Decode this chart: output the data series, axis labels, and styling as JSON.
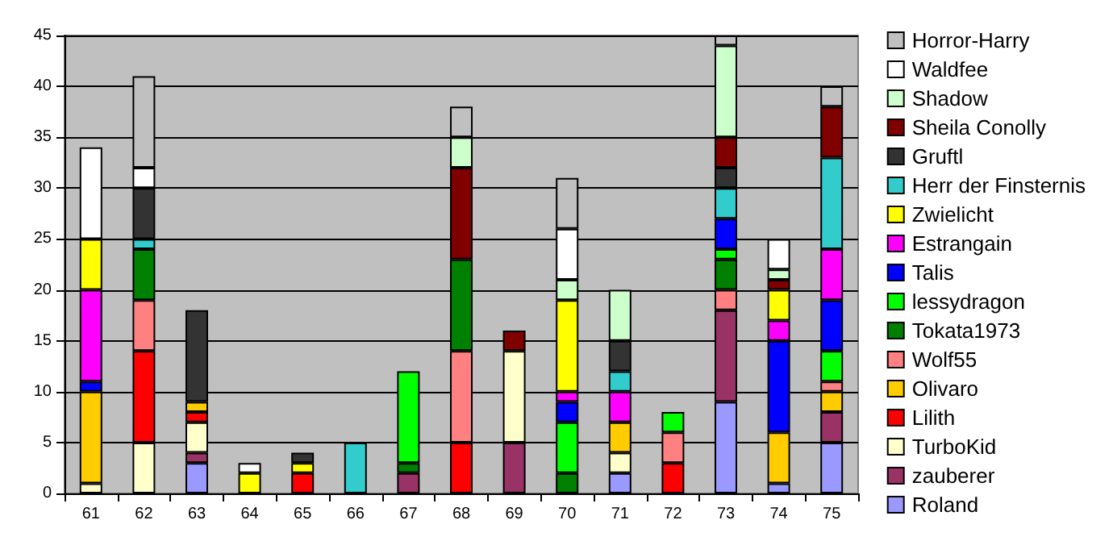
{
  "chart_data": {
    "type": "bar",
    "stacked": true,
    "categories": [
      "61",
      "62",
      "63",
      "64",
      "65",
      "66",
      "67",
      "68",
      "69",
      "70",
      "71",
      "72",
      "73",
      "74",
      "75"
    ],
    "ylim": [
      0,
      45
    ],
    "yticks": [
      0,
      5,
      10,
      15,
      20,
      25,
      30,
      35,
      40,
      45
    ],
    "grid": "y",
    "legend": "right",
    "series": [
      {
        "name": "Roland",
        "color": "#9999ff",
        "values": [
          null,
          null,
          3,
          null,
          null,
          null,
          null,
          null,
          null,
          null,
          2,
          null,
          9,
          1,
          5
        ]
      },
      {
        "name": "zauberer",
        "color": "#993366",
        "values": [
          null,
          null,
          1,
          null,
          null,
          null,
          2,
          null,
          5,
          null,
          null,
          null,
          9,
          null,
          3
        ]
      },
      {
        "name": "TurboKid",
        "color": "#ffffcc",
        "values": [
          1,
          5,
          3,
          null,
          null,
          null,
          null,
          null,
          9,
          null,
          2,
          null,
          null,
          null,
          null
        ]
      },
      {
        "name": "Lilith",
        "color": "#ff0000",
        "values": [
          null,
          9,
          1,
          null,
          2,
          null,
          null,
          5,
          null,
          null,
          null,
          3,
          null,
          null,
          null
        ]
      },
      {
        "name": "Olivaro",
        "color": "#ffcc00",
        "values": [
          9,
          null,
          1,
          null,
          null,
          null,
          null,
          null,
          null,
          null,
          3,
          null,
          null,
          5,
          2
        ]
      },
      {
        "name": "Wolf55",
        "color": "#ff8080",
        "values": [
          null,
          5,
          null,
          null,
          null,
          null,
          null,
          9,
          null,
          null,
          null,
          3,
          2,
          null,
          1
        ]
      },
      {
        "name": "Tokata1973",
        "color": "#008000",
        "values": [
          null,
          5,
          null,
          null,
          null,
          null,
          1,
          9,
          null,
          2,
          null,
          null,
          3,
          null,
          null
        ]
      },
      {
        "name": "lessydragon",
        "color": "#00ff00",
        "values": [
          null,
          null,
          null,
          null,
          null,
          null,
          9,
          null,
          null,
          5,
          null,
          2,
          1,
          null,
          3
        ]
      },
      {
        "name": "Talis",
        "color": "#0000ff",
        "values": [
          1,
          null,
          null,
          null,
          null,
          null,
          null,
          null,
          null,
          2,
          null,
          null,
          3,
          9,
          5
        ]
      },
      {
        "name": "Estrangain",
        "color": "#ff00ff",
        "values": [
          9,
          null,
          null,
          null,
          null,
          null,
          null,
          null,
          null,
          1,
          3,
          null,
          null,
          2,
          5
        ]
      },
      {
        "name": "Zwielicht",
        "color": "#ffff00",
        "values": [
          5,
          null,
          null,
          2,
          1,
          null,
          null,
          null,
          null,
          9,
          null,
          null,
          null,
          3,
          null
        ]
      },
      {
        "name": "Herr der Finsternis",
        "color": "#33cccc",
        "values": [
          null,
          1,
          null,
          null,
          null,
          5,
          null,
          null,
          null,
          null,
          2,
          null,
          3,
          null,
          9
        ]
      },
      {
        "name": "Gruftl",
        "color": "#333333",
        "values": [
          null,
          5,
          9,
          null,
          1,
          null,
          null,
          null,
          null,
          null,
          3,
          null,
          2,
          null,
          null
        ]
      },
      {
        "name": "Sheila Conolly",
        "color": "#800000",
        "values": [
          null,
          null,
          null,
          null,
          null,
          null,
          null,
          9,
          2,
          null,
          null,
          null,
          3,
          1,
          5
        ]
      },
      {
        "name": "Shadow",
        "color": "#ccffcc",
        "values": [
          null,
          null,
          null,
          null,
          null,
          null,
          null,
          3,
          null,
          2,
          5,
          null,
          9,
          1,
          null
        ]
      },
      {
        "name": "Waldfee",
        "color": "#ffffff",
        "values": [
          9,
          2,
          null,
          1,
          null,
          null,
          null,
          null,
          null,
          5,
          null,
          null,
          null,
          3,
          null
        ]
      },
      {
        "name": "Horror-Harry",
        "color": "#c0c0c0",
        "values": [
          null,
          9,
          null,
          null,
          null,
          null,
          null,
          3,
          null,
          5,
          null,
          null,
          1,
          null,
          2
        ]
      }
    ]
  }
}
